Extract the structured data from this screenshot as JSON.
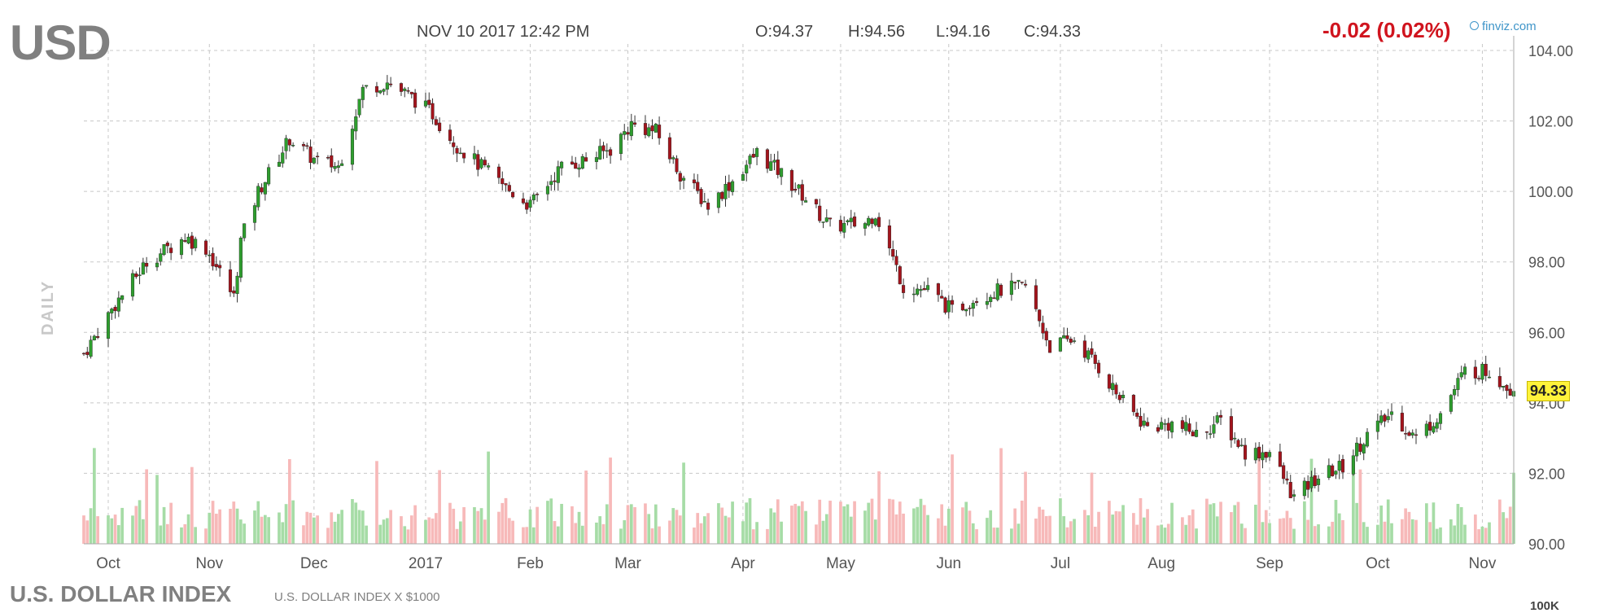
{
  "header": {
    "ticker": "USD",
    "timestamp": "NOV 10 2017 12:42 PM",
    "open": "O:94.37",
    "high": "H:94.56",
    "low": "L:94.16",
    "close": "C:94.33",
    "change": "-0.02 (0.02%)",
    "brand": "finviz.com"
  },
  "side_label": "DAILY",
  "footer": {
    "index_name": "U.S. DOLLAR INDEX",
    "index_desc": "U.S. DOLLAR INDEX X $1000",
    "corner_label": "100K"
  },
  "current_price_label": "94.33",
  "colors": {
    "up": "#2e9e2e",
    "down": "#a4141c",
    "volume_up": "#a6dca6",
    "volume_down": "#f7b9b9",
    "grid": "#c8c8c8",
    "change": "#d0141e",
    "price_badge": "#fff33b"
  },
  "chart_data": {
    "type": "candlestick",
    "ylim": [
      90,
      104
    ],
    "y_ticks": [
      "90.00",
      "92.00",
      "94.00",
      "96.00",
      "98.00",
      "100.00",
      "102.00",
      "104.00"
    ],
    "x_tick_labels": [
      "Oct",
      "Nov",
      "Dec",
      "2017",
      "Feb",
      "Mar",
      "Apr",
      "May",
      "Jun",
      "Jul",
      "Aug",
      "Sep",
      "Oct",
      "Nov"
    ],
    "x_tick_dates": [
      "2016-10-03",
      "2016-11-01",
      "2016-12-01",
      "2017-01-02",
      "2017-02-01",
      "2017-03-01",
      "2017-04-03",
      "2017-05-01",
      "2017-06-01",
      "2017-07-03",
      "2017-08-01",
      "2017-09-01",
      "2017-10-02",
      "2017-11-01"
    ],
    "date_range": [
      "2016-09-26",
      "2017-11-10"
    ],
    "close_path": [
      [
        "2016-09-26",
        95.4
      ],
      [
        "2016-10-05",
        96.8
      ],
      [
        "2016-10-14",
        98.0
      ],
      [
        "2016-10-25",
        98.7
      ],
      [
        "2016-10-31",
        98.4
      ],
      [
        "2016-11-08",
        97.0
      ],
      [
        "2016-11-10",
        98.6
      ],
      [
        "2016-11-15",
        100.0
      ],
      [
        "2016-11-24",
        101.5
      ],
      [
        "2016-12-01",
        100.9
      ],
      [
        "2016-12-08",
        100.7
      ],
      [
        "2016-12-15",
        102.9
      ],
      [
        "2016-12-22",
        103.1
      ],
      [
        "2016-12-30",
        102.6
      ],
      [
        "2017-01-04",
        102.2
      ],
      [
        "2017-01-11",
        101.3
      ],
      [
        "2017-01-18",
        100.7
      ],
      [
        "2017-01-25",
        100.1
      ],
      [
        "2017-02-01",
        99.6
      ],
      [
        "2017-02-10",
        100.7
      ],
      [
        "2017-02-17",
        100.9
      ],
      [
        "2017-02-24",
        101.2
      ],
      [
        "2017-03-02",
        101.9
      ],
      [
        "2017-03-09",
        101.7
      ],
      [
        "2017-03-16",
        100.5
      ],
      [
        "2017-03-24",
        99.6
      ],
      [
        "2017-03-31",
        100.3
      ],
      [
        "2017-04-07",
        101.1
      ],
      [
        "2017-04-14",
        100.5
      ],
      [
        "2017-04-21",
        99.8
      ],
      [
        "2017-04-28",
        99.0
      ],
      [
        "2017-05-08",
        99.1
      ],
      [
        "2017-05-11",
        99.4
      ],
      [
        "2017-05-19",
        97.3
      ],
      [
        "2017-05-26",
        97.2
      ],
      [
        "2017-06-02",
        96.6
      ],
      [
        "2017-06-09",
        97.0
      ],
      [
        "2017-06-16",
        97.2
      ],
      [
        "2017-06-23",
        97.3
      ],
      [
        "2017-06-30",
        95.6
      ],
      [
        "2017-07-07",
        95.8
      ],
      [
        "2017-07-14",
        95.0
      ],
      [
        "2017-07-21",
        94.0
      ],
      [
        "2017-07-28",
        93.3
      ],
      [
        "2017-08-04",
        93.4
      ],
      [
        "2017-08-11",
        93.1
      ],
      [
        "2017-08-18",
        93.5
      ],
      [
        "2017-08-25",
        92.6
      ],
      [
        "2017-09-01",
        92.6
      ],
      [
        "2017-09-08",
        91.3
      ],
      [
        "2017-09-15",
        91.9
      ],
      [
        "2017-09-22",
        92.2
      ],
      [
        "2017-09-29",
        93.1
      ],
      [
        "2017-10-06",
        93.7
      ],
      [
        "2017-10-13",
        93.0
      ],
      [
        "2017-10-20",
        93.7
      ],
      [
        "2017-10-27",
        94.9
      ],
      [
        "2017-11-03",
        94.9
      ],
      [
        "2017-11-10",
        94.33
      ]
    ],
    "volume_shown": true,
    "grid": true,
    "y_axis_side": "right"
  }
}
